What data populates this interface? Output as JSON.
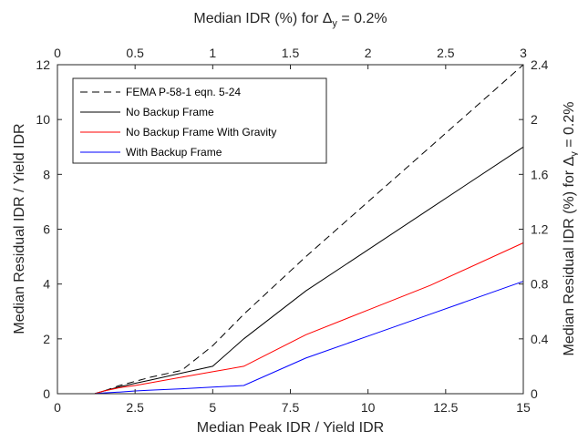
{
  "chart_data": {
    "type": "line",
    "xlabel": "Median Peak IDR / Yield IDR",
    "ylabel": "Median Residual IDR / Yield IDR",
    "top_xlabel_prefix": "Median IDR (%) for ",
    "top_xlabel_symbol": "Δ",
    "top_xlabel_sub": "y",
    "top_xlabel_suffix": " = 0.2%",
    "right_ylabel_prefix": "Median Residual IDR (%) for ",
    "right_ylabel_symbol": "Δ",
    "right_ylabel_sub": "y",
    "right_ylabel_suffix": " = 0.2%",
    "xlim": [
      0,
      15
    ],
    "ylim": [
      0,
      12
    ],
    "x_ticks": [
      0,
      2.5,
      5,
      7.5,
      10,
      12.5,
      15
    ],
    "x_tick_labels": [
      "0",
      "2.5",
      "5",
      "7.5",
      "10",
      "12.5",
      "15"
    ],
    "y_ticks": [
      0,
      2,
      4,
      6,
      8,
      10,
      12
    ],
    "y_tick_labels": [
      "0",
      "2",
      "4",
      "6",
      "8",
      "10",
      "12"
    ],
    "top_ticks": [
      0,
      0.5,
      1,
      1.5,
      2,
      2.5,
      3
    ],
    "top_tick_labels": [
      "0",
      "0.5",
      "1",
      "1.5",
      "2",
      "2.5",
      "3"
    ],
    "right_ticks": [
      0,
      0.4,
      0.8,
      1.2,
      1.6,
      2,
      2.4
    ],
    "right_tick_labels": [
      "0",
      "0.4",
      "0.8",
      "1.2",
      "1.6",
      "2",
      "2.4"
    ],
    "legend_position": "top-left",
    "grid": false,
    "series": [
      {
        "name": "FEMA P-58-1 eqn. 5-24",
        "color": "#000000",
        "dash": "dashed",
        "x": [
          0,
          1.2,
          1.5,
          2.0,
          2.5,
          3.0,
          4.0,
          5.0,
          6.0,
          8.0,
          10.0,
          12.0,
          15.0
        ],
        "y": [
          0,
          0,
          0.1,
          0.3,
          0.45,
          0.6,
          0.85,
          1.75,
          2.9,
          5.0,
          7.0,
          9.0,
          12.0
        ]
      },
      {
        "name": "No Backup Frame",
        "color": "#000000",
        "dash": "solid",
        "x": [
          0,
          1.2,
          1.5,
          2.0,
          2.5,
          3.0,
          4.0,
          5.0,
          6.0,
          8.0,
          10.0,
          12.0,
          15.0
        ],
        "y": [
          0,
          0,
          0.1,
          0.25,
          0.38,
          0.5,
          0.75,
          1.0,
          2.0,
          3.75,
          5.25,
          6.75,
          9.0
        ]
      },
      {
        "name": "No Backup Frame With Gravity",
        "color": "#ff0000",
        "dash": "solid",
        "x": [
          0,
          1.2,
          1.5,
          2.0,
          2.5,
          3.0,
          4.0,
          5.0,
          6.0,
          8.0,
          10.0,
          12.0,
          15.0
        ],
        "y": [
          0,
          0,
          0.1,
          0.22,
          0.3,
          0.4,
          0.6,
          0.8,
          1.0,
          2.15,
          3.05,
          3.95,
          5.5
        ]
      },
      {
        "name": "With Backup Frame",
        "color": "#0000ff",
        "dash": "solid",
        "x": [
          0,
          1.2,
          1.5,
          2.0,
          2.5,
          3.0,
          4.0,
          5.0,
          6.0,
          8.0,
          10.0,
          12.0,
          15.0
        ],
        "y": [
          0,
          0,
          0.03,
          0.06,
          0.1,
          0.13,
          0.18,
          0.24,
          0.3,
          1.3,
          2.1,
          2.9,
          4.1
        ]
      }
    ]
  }
}
